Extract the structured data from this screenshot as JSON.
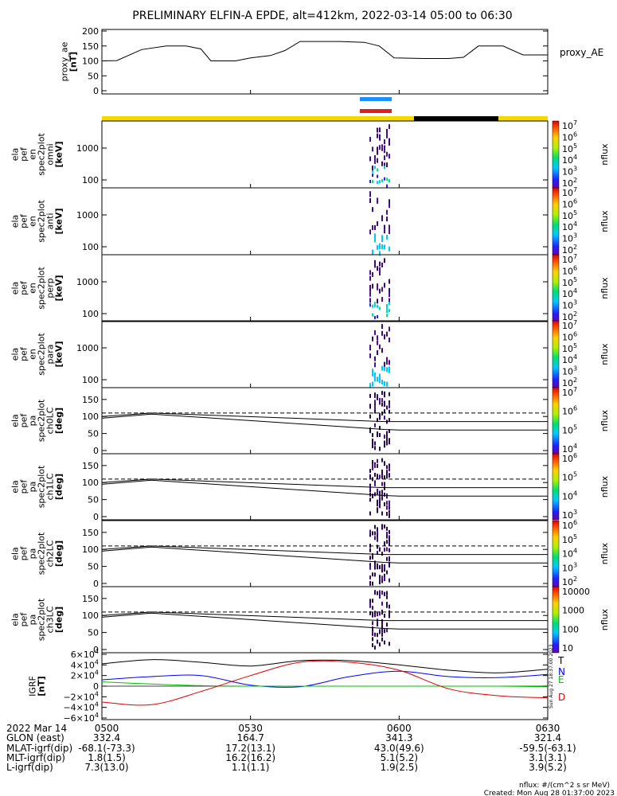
{
  "title": "PRELIMINARY ELFIN-A EPDE, alt=412km, 2022-03-14 05:00 to 06:30",
  "colors": {
    "status_yellow": "#f5d800",
    "status_black": "#000000",
    "blue_bar": "#1e90ff",
    "red_bar": "#e02020"
  },
  "chart_data": [
    {
      "type": "line",
      "ylabel": "proxy_ae\n[nT]",
      "legend": "proxy_AE",
      "ylim": [
        0,
        200
      ],
      "yticks": [
        "200",
        "150",
        "100",
        "50",
        "0"
      ],
      "x": [
        "05:00",
        "05:03",
        "05:08",
        "05:13",
        "05:17",
        "05:20",
        "05:22",
        "05:27",
        "05:30",
        "05:34",
        "05:37",
        "05:40",
        "05:48",
        "05:53",
        "05:56",
        "05:59",
        "06:05",
        "06:10",
        "06:13",
        "06:16",
        "06:21",
        "06:25",
        "06:30"
      ],
      "values": [
        100,
        101,
        138,
        150,
        150,
        140,
        100,
        100,
        110,
        118,
        135,
        165,
        165,
        162,
        150,
        110,
        108,
        108,
        112,
        150,
        150,
        120,
        120
      ]
    },
    {
      "type": "heatmap",
      "panels": [
        {
          "ylabel": "ela\npef\nen\nspec2plot\nomni\n[keV]",
          "yticks": [
            "1000",
            "100"
          ],
          "colorbar_ticks": [
            "10^7",
            "10^6",
            "10^5",
            "10^4",
            "10^3",
            "10^2"
          ],
          "colorbar_label": "nflux"
        },
        {
          "ylabel": "ela\npef\nen\nspec2plot\nanti\n[keV]",
          "yticks": [
            "1000",
            "100"
          ],
          "colorbar_ticks": [
            "10^7",
            "10^6",
            "10^5",
            "10^4",
            "10^3",
            "10^2"
          ],
          "colorbar_label": "nflux"
        },
        {
          "ylabel": "ela\npef\nen\nspec2plot\nperp\n[keV]",
          "yticks": [
            "1000",
            "100"
          ],
          "colorbar_ticks": [
            "10^7",
            "10^6",
            "10^5",
            "10^4",
            "10^3",
            "10^2"
          ],
          "colorbar_label": "nflux"
        },
        {
          "ylabel": "ela\npef\nen\nspec2plot\npara\n[keV]",
          "yticks": [
            "1000",
            "100"
          ],
          "colorbar_ticks": [
            "10^7",
            "10^6",
            "10^5",
            "10^4",
            "10^3",
            "10^2"
          ],
          "colorbar_label": "nflux"
        }
      ],
      "data_time_range": [
        "05:54",
        "05:58"
      ]
    },
    {
      "type": "line",
      "panels": [
        {
          "ylabel": "ela\npef\npa\nspec2plot\nch0LC\n[deg]",
          "yticks": [
            "150",
            "100",
            "50",
            "0"
          ],
          "colorbar_ticks": [
            "10^7",
            "10^6",
            "10^5",
            "10^4"
          ],
          "colorbar_label": "nflux"
        },
        {
          "ylabel": "ela\npef\npa\nspec2plot\nch1LC\n[deg]",
          "yticks": [
            "150",
            "100",
            "50",
            "0"
          ],
          "colorbar_ticks": [
            "10^6",
            "10^5",
            "10^4",
            "10^3"
          ],
          "colorbar_label": "nflux"
        },
        {
          "ylabel": "ela\npef\npa\nspec2plot\nch2LC\n[deg]",
          "yticks": [
            "150",
            "100",
            "50",
            "0"
          ],
          "colorbar_ticks": [
            "10^6",
            "10^5",
            "10^4",
            "10^3",
            "10^2"
          ],
          "colorbar_label": "nflux"
        },
        {
          "ylabel": "ela\npef\npa\nspec2plot\nch3LC\n[deg]",
          "yticks": [
            "150",
            "100",
            "50",
            "0"
          ],
          "colorbar_ticks": [
            "10000",
            "1000",
            "100",
            "10"
          ],
          "colorbar_label": "nflux"
        }
      ],
      "ylim": [
        0,
        180
      ],
      "series": [
        {
          "x": [
            "05:00",
            "05:10",
            "05:57",
            "06:00",
            "06:30"
          ],
          "values": [
            100,
            110,
            85,
            85,
            85
          ]
        },
        {
          "x": [
            "05:00",
            "05:10",
            "05:57",
            "06:00",
            "06:30"
          ],
          "values": [
            95,
            107,
            62,
            60,
            60
          ]
        },
        {
          "x": [
            "05:00",
            "06:30"
          ],
          "values": [
            110,
            110
          ]
        }
      ]
    },
    {
      "type": "line",
      "ylabel": "IGRF\n[nT]",
      "yticks": [
        "6×10^4",
        "4×10^4",
        "2×10^4",
        "0",
        "−2×10^4",
        "−4×10^4",
        "−6×10^4"
      ],
      "ylim": [
        -60000,
        60000
      ],
      "legend": [
        "T",
        "N",
        "E",
        "D"
      ],
      "legend_colors": [
        "#000000",
        "#0000ff",
        "#00c000",
        "#e00000"
      ],
      "x": [
        "05:00",
        "05:10",
        "05:20",
        "05:30",
        "05:40",
        "05:50",
        "06:00",
        "06:10",
        "06:20",
        "06:30"
      ],
      "series": [
        {
          "name": "T",
          "color": "#000000",
          "values": [
            42000,
            50000,
            45000,
            38000,
            48000,
            48000,
            40000,
            30000,
            25000,
            32000
          ]
        },
        {
          "name": "N",
          "color": "#0000ff",
          "values": [
            12000,
            18000,
            20000,
            2000,
            -1000,
            18000,
            28000,
            18000,
            16000,
            22000
          ]
        },
        {
          "name": "E",
          "color": "#00c000",
          "values": [
            8000,
            4000,
            1000,
            0,
            0,
            0,
            0,
            0,
            0,
            -1000
          ]
        },
        {
          "name": "D",
          "color": "#e00000",
          "values": [
            -30000,
            -35000,
            -10000,
            20000,
            45000,
            45000,
            30000,
            -5000,
            -18000,
            -22000
          ]
        }
      ],
      "side_text": "Sun Aug 27 18:37:00 2023"
    }
  ],
  "x_axis": {
    "ticks": [
      "0500",
      "0530",
      "0600",
      "0630"
    ],
    "rows": [
      {
        "label": "2022 Mar 14",
        "values": [
          "0500",
          "0530",
          "0600",
          "0630"
        ]
      },
      {
        "label": "GLON (east)",
        "values": [
          "332.4",
          "164.7",
          "341.3",
          "321.4"
        ]
      },
      {
        "label": "MLAT-igrf(dip)",
        "values": [
          "-68.1(-73.3)",
          "17.2(13.1)",
          "43.0(49.6)",
          "-59.5(-63.1)"
        ]
      },
      {
        "label": "MLT-igrf(dip)",
        "values": [
          "1.8(1.5)",
          "16.2(16.2)",
          "5.1(5.2)",
          "3.1(3.1)"
        ]
      },
      {
        "label": "L-igrf(dip)",
        "values": [
          "7.3(13.0)",
          "1.1(1.1)",
          "1.9(2.5)",
          "3.9(5.2)"
        ]
      }
    ]
  },
  "footer": {
    "units": "nflux: #/(cm^2 s sr MeV)",
    "created": "Created: Mon Aug 28 01:37:00 2023"
  }
}
